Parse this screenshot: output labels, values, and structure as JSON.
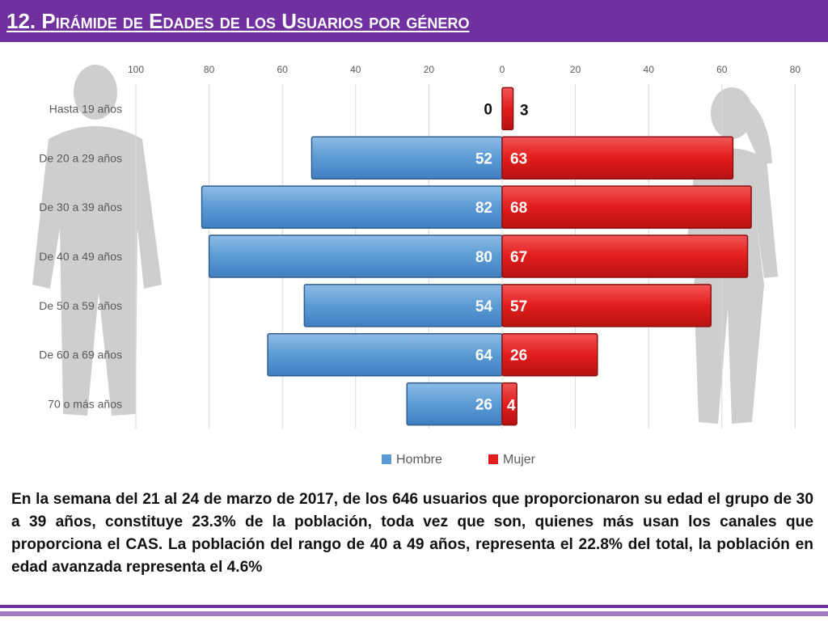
{
  "title": "12. Pirámide de Edades de los Usuarios por género",
  "chart_data": {
    "type": "bar",
    "orientation": "horizontal",
    "subtype": "population-pyramid",
    "categories": [
      "Hasta 19 años",
      "De 20 a 29 años",
      "De 30 a 39 años",
      "De 40 a 49 años",
      "De 50 a 59 años",
      "De 60 a 69 años",
      "70 o más años"
    ],
    "series": [
      {
        "name": "Hombre",
        "values": [
          0,
          52,
          82,
          80,
          54,
          64,
          26
        ],
        "color": "#5b9bd5",
        "side": "left"
      },
      {
        "name": "Mujer",
        "values": [
          3,
          63,
          68,
          67,
          57,
          26,
          4
        ],
        "color": "#e21d1d",
        "side": "right"
      }
    ],
    "x_ticks": [
      "100",
      "80",
      "60",
      "40",
      "20",
      "0",
      "20",
      "40",
      "60",
      "80"
    ],
    "xlim": [
      -100,
      80
    ],
    "grid": true,
    "legend": "bottom-center"
  },
  "summary": "En la semana del 21 al 24 de marzo de 2017, de los 646 usuarios  que proporcionaron su edad el grupo de 30 a 39 años,  constituye 23.3% de la población, toda vez que son, quienes más usan los canales que proporciona el CAS. La población del rango de 40 a 49 años, representa el 22.8% del total, la población en edad avanzada representa el 4.6%",
  "colors": {
    "accent": "#7030a0",
    "male": "#5b9bd5",
    "female": "#e21d1d",
    "silhouette": "#bfbfbf"
  }
}
